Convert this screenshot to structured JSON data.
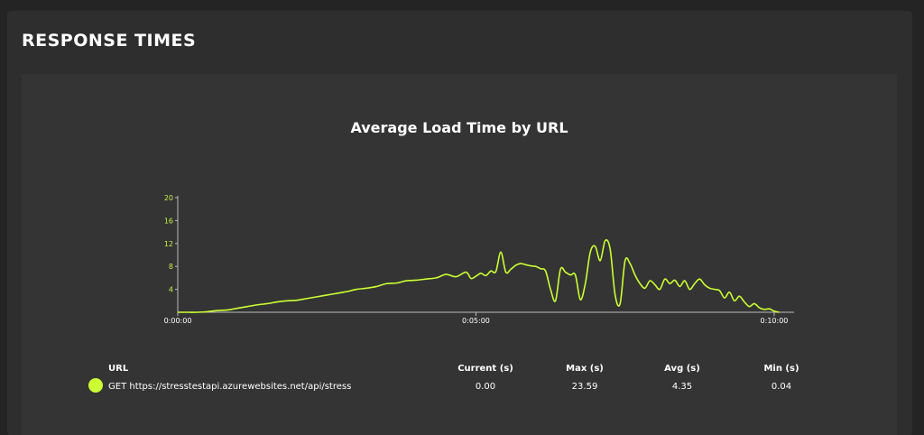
{
  "panel": {
    "title": "RESPONSE TIMES"
  },
  "chart_data": {
    "type": "line",
    "title": "Average Load Time by URL",
    "xlabel": "",
    "ylabel": "",
    "ylim": [
      0,
      20
    ],
    "yticks": [
      4,
      8,
      12,
      16,
      20
    ],
    "xlim": [
      0,
      620
    ],
    "xticks": [
      {
        "value": 0,
        "label": "0:00:00"
      },
      {
        "value": 300,
        "label": "0:05:00"
      },
      {
        "value": 600,
        "label": "0:10:00"
      }
    ],
    "grid": false,
    "series": [
      {
        "name": "GET https://stresstestapi.azurewebsites.net/api/stress",
        "color": "#ccff33",
        "x": [
          0,
          10,
          20,
          30,
          40,
          50,
          60,
          70,
          80,
          90,
          100,
          110,
          120,
          130,
          140,
          150,
          160,
          170,
          180,
          190,
          200,
          210,
          220,
          230,
          240,
          250,
          260,
          270,
          280,
          290,
          295,
          300,
          305,
          310,
          315,
          320,
          325,
          330,
          335,
          340,
          345,
          350,
          355,
          360,
          365,
          370,
          375,
          380,
          385,
          390,
          395,
          400,
          405,
          410,
          415,
          420,
          425,
          430,
          435,
          440,
          445,
          450,
          455,
          460,
          465,
          470,
          475,
          480,
          485,
          490,
          495,
          500,
          505,
          510,
          515,
          520,
          525,
          530,
          535,
          540,
          545,
          550,
          555,
          560,
          565,
          570,
          575,
          580,
          585,
          590,
          595,
          600,
          605
        ],
        "values": [
          0,
          0,
          0,
          0.1,
          0.3,
          0.4,
          0.7,
          1.0,
          1.3,
          1.5,
          1.8,
          2.0,
          2.1,
          2.4,
          2.7,
          3.0,
          3.3,
          3.6,
          4.0,
          4.2,
          4.5,
          5.0,
          5.1,
          5.5,
          5.6,
          5.8,
          6.0,
          6.6,
          6.2,
          7.0,
          5.9,
          6.3,
          6.8,
          6.4,
          7.2,
          7.1,
          10.5,
          7.0,
          7.5,
          8.2,
          8.5,
          8.3,
          8.1,
          8.0,
          7.6,
          7.2,
          4.0,
          2.0,
          7.5,
          7.0,
          6.5,
          6.5,
          2.2,
          5.0,
          10.5,
          11.5,
          9.0,
          12.5,
          11.0,
          3.0,
          1.5,
          9.0,
          8.5,
          6.5,
          5.0,
          4.2,
          5.5,
          4.8,
          4.0,
          5.8,
          5.0,
          5.6,
          4.5,
          5.5,
          4.0,
          5.0,
          5.8,
          4.8,
          4.2,
          4.0,
          3.8,
          2.5,
          3.5,
          2.0,
          2.8,
          1.8,
          1.0,
          1.5,
          0.8,
          0.5,
          0.6,
          0.2,
          0
        ]
      }
    ]
  },
  "table": {
    "headers": {
      "url": "URL",
      "current": "Current (s)",
      "max": "Max (s)",
      "avg": "Avg (s)",
      "min": "Min (s)"
    },
    "rows": [
      {
        "color": "#ccff33",
        "url": "GET https://stresstestapi.azurewebsites.net/api/stress",
        "current": "0.00",
        "max": "23.59",
        "avg": "4.35",
        "min": "0.04"
      }
    ]
  }
}
